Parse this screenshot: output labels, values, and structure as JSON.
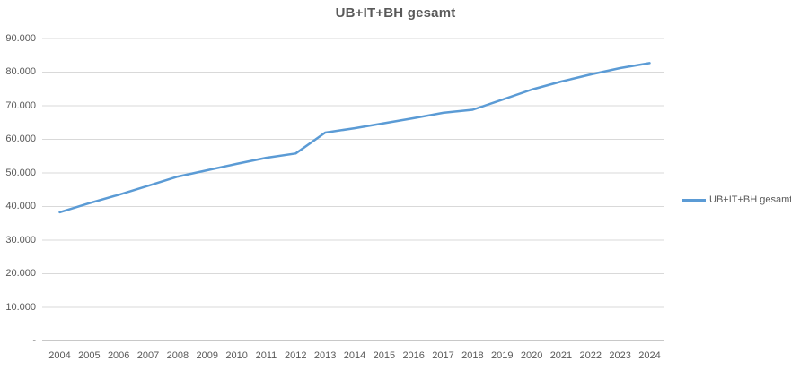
{
  "title": "UB+IT+BH gesamt",
  "legend": {
    "label": "UB+IT+BH gesamt"
  },
  "colors": {
    "line": "#5B9BD5",
    "gridline": "#D9D9D9",
    "axis_line": "#C8C8C8",
    "text": "#595959",
    "background": "#FFFFFF"
  },
  "chart_data": {
    "type": "line",
    "title": "UB+IT+BH gesamt",
    "x": [
      2004,
      2005,
      2006,
      2007,
      2008,
      2009,
      2010,
      2011,
      2012,
      2013,
      2014,
      2015,
      2016,
      2017,
      2018,
      2019,
      2020,
      2021,
      2022,
      2023,
      2024
    ],
    "series": [
      {
        "name": "UB+IT+BH gesamt",
        "color": "#5B9BD5",
        "values": [
          38300,
          41000,
          43500,
          46200,
          48900,
          50800,
          52700,
          54500,
          55800,
          62000,
          63300,
          64800,
          66300,
          67900,
          68800,
          71800,
          74800,
          77200,
          79300,
          81200,
          82700
        ]
      }
    ],
    "xlabel": "",
    "ylabel": "",
    "ylim": [
      0,
      90000
    ],
    "yticks": [
      0,
      10000,
      20000,
      30000,
      40000,
      50000,
      60000,
      70000,
      80000,
      90000
    ],
    "ytick_labels": [
      "-",
      "10.000",
      "20.000",
      "30.000",
      "40.000",
      "50.000",
      "60.000",
      "70.000",
      "80.000",
      "90.000"
    ],
    "grid": true,
    "legend_position": "right"
  }
}
